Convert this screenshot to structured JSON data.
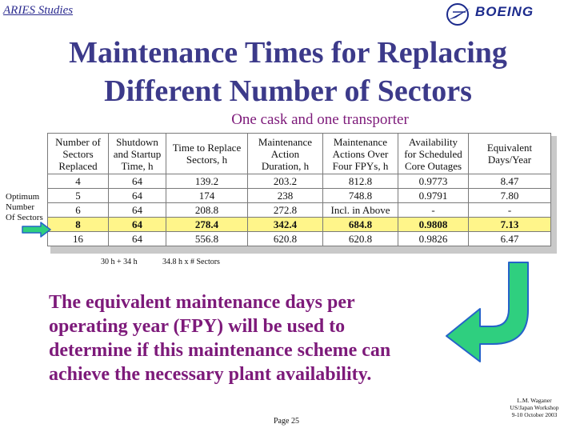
{
  "header": {
    "project": "ARIES Studies",
    "logo_text": "BOEING"
  },
  "title_lines": [
    "Maintenance Times for Replacing",
    "Different Number of Sectors"
  ],
  "subtitle": "One cask and one transporter",
  "side_label": [
    "Optimum",
    "Number",
    "Of Sectors"
  ],
  "table": {
    "headers": [
      [
        "Number of",
        "Sectors",
        "Replaced"
      ],
      [
        "Shutdown",
        "and Startup",
        "Time, h"
      ],
      [
        "Time to Replace",
        "Sectors, h"
      ],
      [
        "Maintenance",
        "Action",
        "Duration, h"
      ],
      [
        "Maintenance",
        "Actions Over",
        "Four FPYs, h"
      ],
      [
        "Availability",
        "for Scheduled",
        "Core Outages"
      ],
      [
        "Equivalent",
        "Days/Year"
      ]
    ],
    "rows": [
      [
        "4",
        "64",
        "139.2",
        "203.2",
        "812.8",
        "0.9773",
        "8.47"
      ],
      [
        "5",
        "64",
        "174",
        "238",
        "748.8",
        "0.9791",
        "7.80"
      ],
      [
        "6",
        "64",
        "208.8",
        "272.8",
        "Incl. in Above",
        "-",
        "-"
      ],
      [
        "8",
        "64",
        "278.4",
        "342.4",
        "684.8",
        "0.9808",
        "7.13"
      ],
      [
        "16",
        "64",
        "556.8",
        "620.8",
        "620.8",
        "0.9826",
        "6.47"
      ]
    ],
    "highlight_row": 3,
    "highlight_color": "#fff58a"
  },
  "notes": {
    "shutdown": "30 h + 34 h",
    "replace": "34.8 h x # Sectors"
  },
  "body_text": [
    "The equivalent maintenance days per",
    "operating year (FPY) will be used to",
    "determine if this maintenance scheme can",
    "achieve the necessary plant availability."
  ],
  "footer": {
    "page": "Page 25",
    "author_lines": [
      "L.M. Waganer",
      "US/Japan Workshop",
      "9-10 October 2003"
    ]
  },
  "colors": {
    "title": "#3c3a8a",
    "accent": "#7d1a7a",
    "arrow_fill": "#2fcf7f",
    "arrow_stroke": "#2563c9"
  },
  "icons": {
    "logo": "boeing-logo-icon",
    "arrow": "right-arrow-icon",
    "curved_arrow": "curved-arrow-icon"
  }
}
